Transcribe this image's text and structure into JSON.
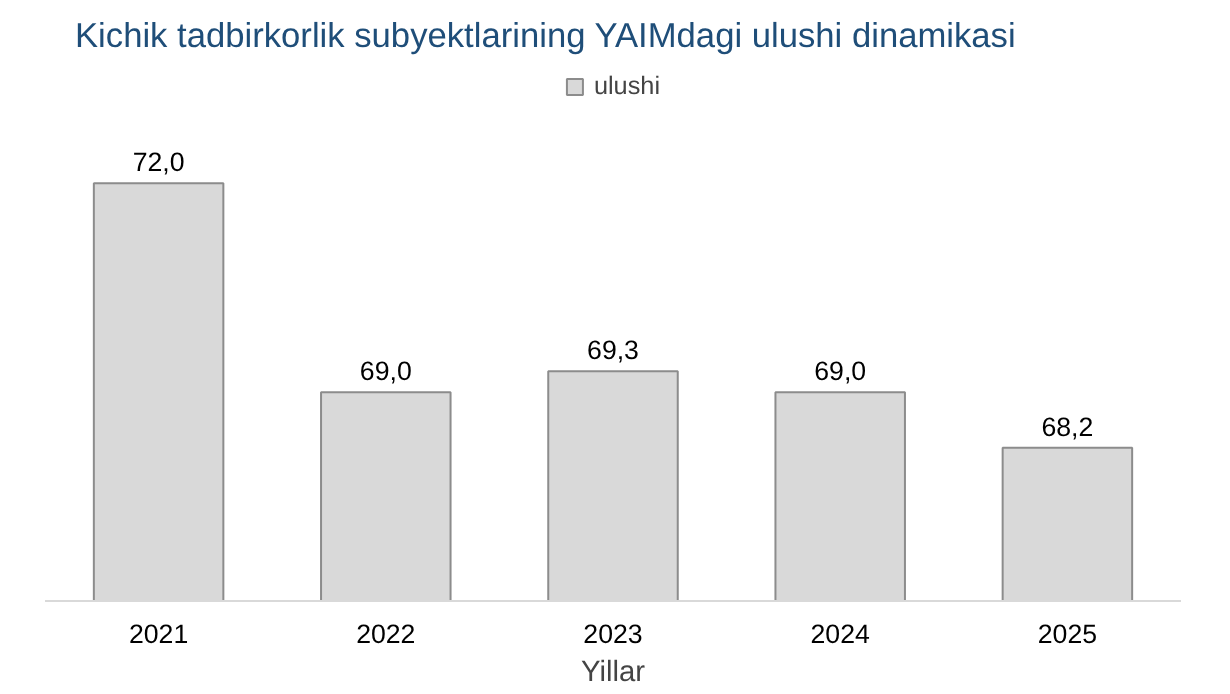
{
  "chart_data": {
    "type": "bar",
    "title": "Kichik tadbirkorlik subyektlarining YAIMdagi ulushi dinamikasi",
    "xlabel": "Yillar",
    "categories": [
      "2021",
      "2022",
      "2023",
      "2024",
      "2025"
    ],
    "series": [
      {
        "name": "ulushi",
        "color": "#d9d9d9",
        "values": [
          72.0,
          69.0,
          69.3,
          69.0,
          68.2
        ],
        "value_labels": [
          "72,0",
          "69,0",
          "69,3",
          "69,0",
          "68,2"
        ]
      }
    ],
    "ylim": [
      66,
      73.7
    ],
    "tick_labels": "x",
    "legend": "top",
    "grid": false
  }
}
